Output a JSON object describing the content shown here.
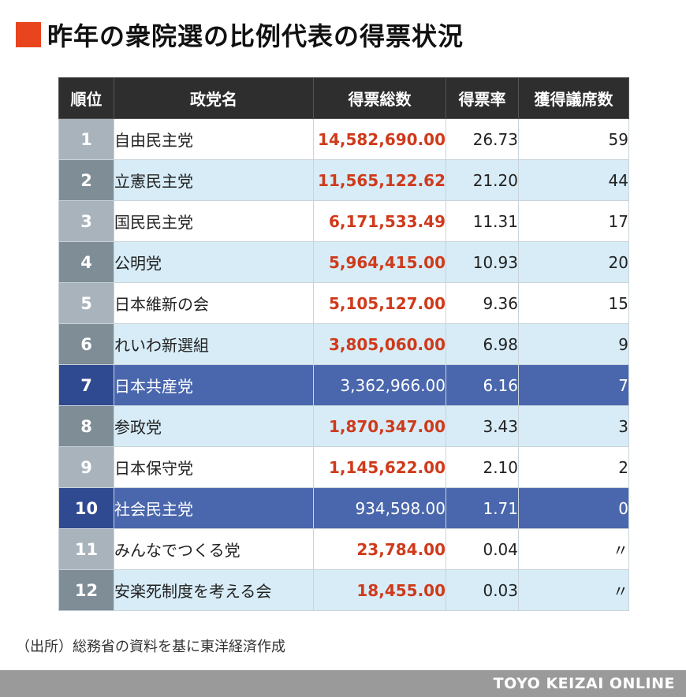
{
  "title": "昨年の衆院選の比例代表の得票状況",
  "colors": {
    "accent": "#e8451e",
    "highlight": "#4a67ad",
    "votes": "#cf3a1b"
  },
  "table": {
    "headers": {
      "rank": "順位",
      "party": "政党名",
      "votes": "得票総数",
      "rate": "得票率",
      "seats": "獲得議席数"
    },
    "rows": [
      {
        "rank": "1",
        "party": "自由民主党",
        "votes": "14,582,690.00",
        "rate": "26.73",
        "seats": "59"
      },
      {
        "rank": "2",
        "party": "立憲民主党",
        "votes": "11,565,122.62",
        "rate": "21.20",
        "seats": "44"
      },
      {
        "rank": "3",
        "party": "国民民主党",
        "votes": "6,171,533.49",
        "rate": "11.31",
        "seats": "17"
      },
      {
        "rank": "4",
        "party": "公明党",
        "votes": "5,964,415.00",
        "rate": "10.93",
        "seats": "20"
      },
      {
        "rank": "5",
        "party": "日本維新の会",
        "votes": "5,105,127.00",
        "rate": "9.36",
        "seats": "15"
      },
      {
        "rank": "6",
        "party": "れいわ新選組",
        "votes": "3,805,060.00",
        "rate": "6.98",
        "seats": "9"
      },
      {
        "rank": "7",
        "party": "日本共産党",
        "votes": "3,362,966.00",
        "rate": "6.16",
        "seats": "7"
      },
      {
        "rank": "8",
        "party": "参政党",
        "votes": "1,870,347.00",
        "rate": "3.43",
        "seats": "3"
      },
      {
        "rank": "9",
        "party": "日本保守党",
        "votes": "1,145,622.00",
        "rate": "2.10",
        "seats": "2"
      },
      {
        "rank": "10",
        "party": "社会民主党",
        "votes": "934,598.00",
        "rate": "1.71",
        "seats": "0"
      },
      {
        "rank": "11",
        "party": "みんなでつくる党",
        "votes": "23,784.00",
        "rate": "0.04",
        "seats": "〃"
      },
      {
        "rank": "12",
        "party": "安楽死制度を考える会",
        "votes": "18,455.00",
        "rate": "0.03",
        "seats": "〃"
      }
    ]
  },
  "source": "（出所）総務省の資料を基に東洋経済作成",
  "brand": "TOYO KEIZAI ONLINE"
}
